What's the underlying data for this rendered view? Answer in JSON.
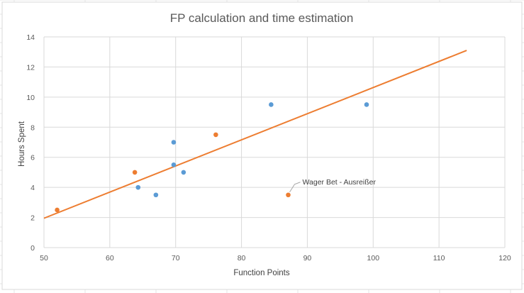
{
  "chart_data": {
    "type": "scatter",
    "title": "FP calculation and time estimation",
    "xlabel": "Function Points",
    "ylabel": "Hours Spent",
    "xlim": [
      50,
      120
    ],
    "ylim": [
      0,
      14
    ],
    "x_ticks": [
      50,
      60,
      70,
      80,
      90,
      100,
      110,
      120
    ],
    "y_ticks": [
      0,
      2,
      4,
      6,
      8,
      10,
      12,
      14
    ],
    "grid": true,
    "legend": "none",
    "series": [
      {
        "color": "#5b9bd5",
        "points": [
          {
            "x": 64.3,
            "y": 4.0
          },
          {
            "x": 67.0,
            "y": 3.5
          },
          {
            "x": 69.7,
            "y": 7.0
          },
          {
            "x": 69.7,
            "y": 5.5
          },
          {
            "x": 71.2,
            "y": 5.0
          },
          {
            "x": 84.5,
            "y": 9.5
          },
          {
            "x": 99.0,
            "y": 9.5
          }
        ]
      },
      {
        "color": "#ed7d31",
        "points": [
          {
            "x": 52.0,
            "y": 2.5
          },
          {
            "x": 63.8,
            "y": 5.0
          },
          {
            "x": 76.1,
            "y": 7.5
          },
          {
            "x": 87.1,
            "y": 3.5
          }
        ]
      }
    ],
    "trendline": {
      "color": "#ed7d31",
      "from": {
        "x": 50,
        "y": 1.95
      },
      "to": {
        "x": 114.2,
        "y": 13.1
      }
    },
    "annotations": [
      {
        "text": "Wager Bet - Ausreißer",
        "x": 87.1,
        "y": 3.5
      }
    ]
  }
}
